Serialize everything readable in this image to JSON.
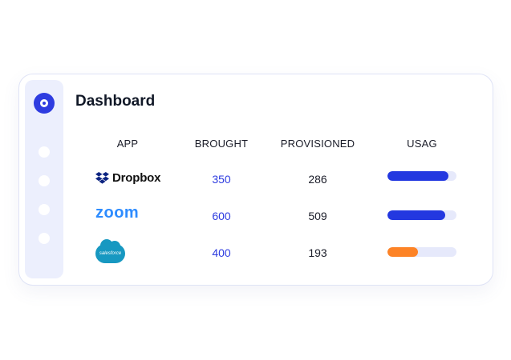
{
  "header": {
    "title": "Dashboard"
  },
  "table": {
    "columns": [
      "APP",
      "BROUGHT",
      "PROVISIONED",
      "USAG"
    ],
    "rows": [
      {
        "app": "Dropbox",
        "brought": "350",
        "provisioned": "286",
        "usage": 0.88,
        "bar_color": "#2338e0"
      },
      {
        "app": "zoom",
        "brought": "600",
        "provisioned": "509",
        "usage": 0.84,
        "bar_color": "#2338e0"
      },
      {
        "app": "salesforce",
        "brought": "400",
        "provisioned": "193",
        "usage": 0.44,
        "bar_color": "#fd8326"
      }
    ]
  },
  "colors": {
    "accent": "#2e3ce0",
    "orange": "#fd8326",
    "track": "#e6e9fb"
  }
}
